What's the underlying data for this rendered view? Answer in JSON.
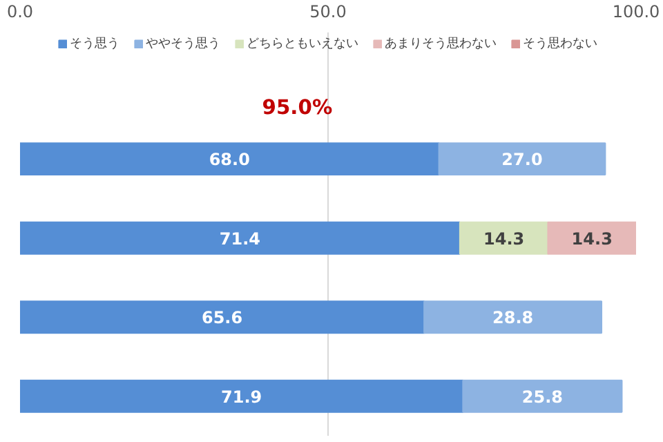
{
  "chart_data": {
    "type": "bar",
    "orientation": "horizontal",
    "stacked": true,
    "categories": [
      null,
      null,
      null,
      null
    ],
    "series": [
      {
        "name": "そう思う",
        "color": "#558ed5",
        "values": [
          68.0,
          71.4,
          65.6,
          71.9
        ],
        "value_labels": [
          "68.0",
          "71.4",
          "65.6",
          "71.9"
        ]
      },
      {
        "name": "ややそう思う",
        "color": "#8db3e2",
        "values": [
          27.0,
          null,
          28.8,
          25.8
        ],
        "value_labels": [
          "27.0",
          null,
          "28.8",
          "25.8"
        ]
      },
      {
        "name": "どちらともいえない",
        "color": "#d7e4bd",
        "values": [
          null,
          14.3,
          null,
          null
        ],
        "value_labels": [
          null,
          "14.3",
          null,
          null
        ]
      },
      {
        "name": "あまりそう思わない",
        "color": "#e6b9b8",
        "values": [
          null,
          14.3,
          null,
          null
        ],
        "value_labels": [
          null,
          "14.3",
          null,
          null
        ]
      },
      {
        "name": "そう思わない",
        "color": "#d99694",
        "values": [
          null,
          null,
          null,
          null
        ]
      }
    ],
    "xlim": [
      0,
      100
    ],
    "xticks": [
      {
        "value": 0,
        "label": "0.0"
      },
      {
        "value": 50,
        "label": "50.0"
      },
      {
        "value": 100,
        "label": "100.0"
      }
    ],
    "grid": "x",
    "legend": "top",
    "tick_labels": "x",
    "annotations": [
      "95.0%"
    ]
  }
}
